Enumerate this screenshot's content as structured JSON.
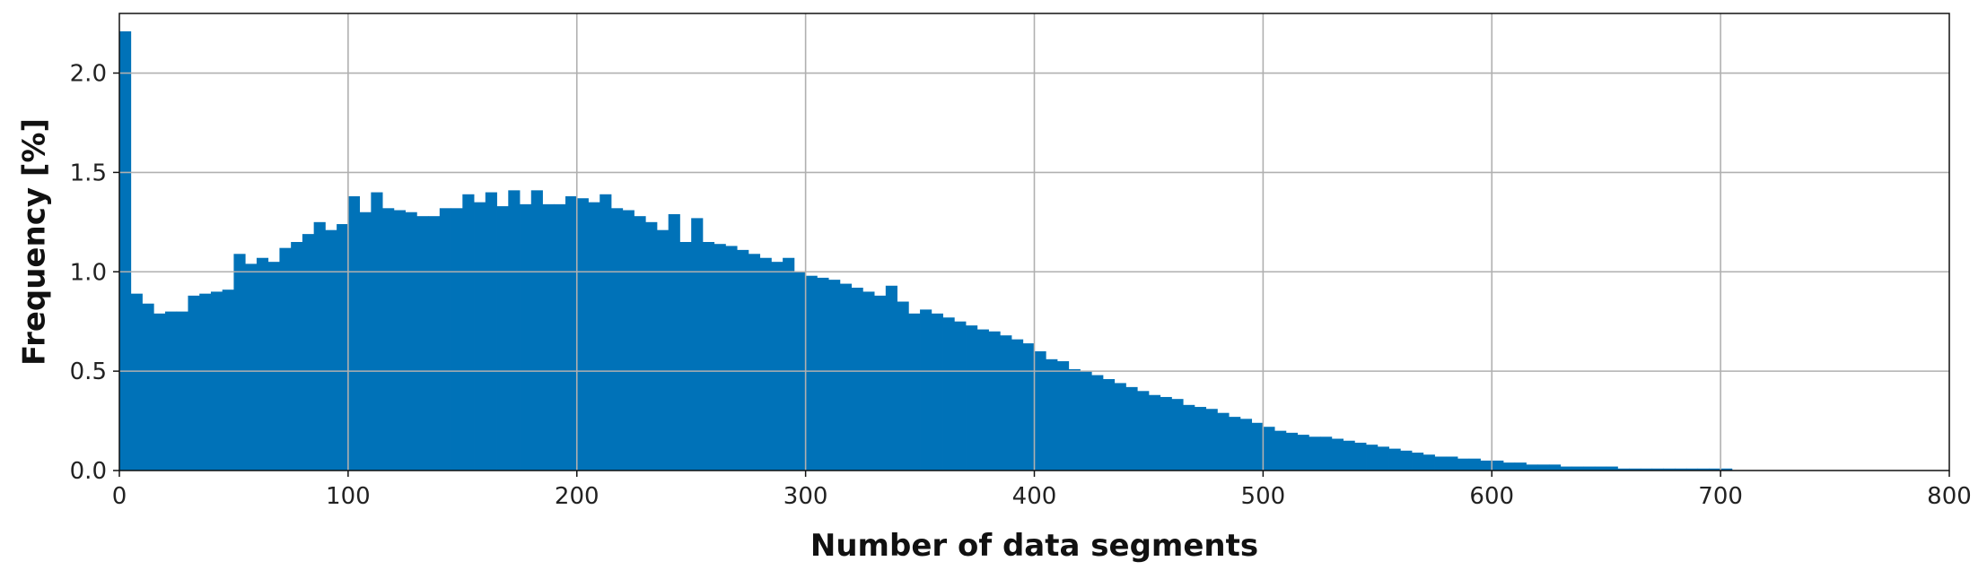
{
  "chart_data": {
    "type": "bar",
    "title": "",
    "xlabel": "Number of data segments",
    "ylabel": "Frequency [%]",
    "xlim": [
      0,
      800
    ],
    "ylim": [
      0,
      2.3
    ],
    "xticks": [
      0,
      100,
      200,
      300,
      400,
      500,
      600,
      700,
      800
    ],
    "xtick_labels": [
      "0",
      "100",
      "200",
      "300",
      "400",
      "500",
      "600",
      "700",
      "800"
    ],
    "yticks": [
      0.0,
      0.5,
      1.0,
      1.5,
      2.0
    ],
    "ytick_labels": [
      "0.0",
      "0.5",
      "1.0",
      "1.5",
      "2.0"
    ],
    "grid": true,
    "color": "#0072b8",
    "bin_width": 5,
    "bin_start": 0,
    "values": [
      2.21,
      0.89,
      0.84,
      0.79,
      0.8,
      0.8,
      0.88,
      0.89,
      0.9,
      0.91,
      1.09,
      1.04,
      1.07,
      1.05,
      1.12,
      1.15,
      1.19,
      1.25,
      1.21,
      1.24,
      1.38,
      1.3,
      1.4,
      1.32,
      1.31,
      1.3,
      1.28,
      1.28,
      1.32,
      1.32,
      1.39,
      1.35,
      1.4,
      1.33,
      1.41,
      1.34,
      1.41,
      1.34,
      1.34,
      1.38,
      1.37,
      1.35,
      1.39,
      1.32,
      1.31,
      1.28,
      1.25,
      1.21,
      1.29,
      1.15,
      1.27,
      1.15,
      1.14,
      1.13,
      1.11,
      1.09,
      1.07,
      1.05,
      1.07,
      1.0,
      0.98,
      0.97,
      0.96,
      0.94,
      0.92,
      0.9,
      0.88,
      0.93,
      0.85,
      0.79,
      0.81,
      0.79,
      0.77,
      0.75,
      0.73,
      0.71,
      0.7,
      0.68,
      0.66,
      0.64,
      0.6,
      0.56,
      0.55,
      0.51,
      0.5,
      0.48,
      0.46,
      0.44,
      0.42,
      0.4,
      0.38,
      0.37,
      0.36,
      0.33,
      0.32,
      0.31,
      0.29,
      0.27,
      0.26,
      0.24,
      0.22,
      0.2,
      0.19,
      0.18,
      0.17,
      0.17,
      0.16,
      0.15,
      0.14,
      0.13,
      0.12,
      0.11,
      0.1,
      0.09,
      0.08,
      0.07,
      0.07,
      0.06,
      0.06,
      0.05,
      0.05,
      0.04,
      0.04,
      0.03,
      0.03,
      0.03,
      0.02,
      0.02,
      0.02,
      0.02,
      0.02,
      0.01,
      0.01,
      0.01,
      0.01,
      0.01,
      0.01,
      0.01,
      0.01,
      0.01,
      0.01
    ]
  }
}
